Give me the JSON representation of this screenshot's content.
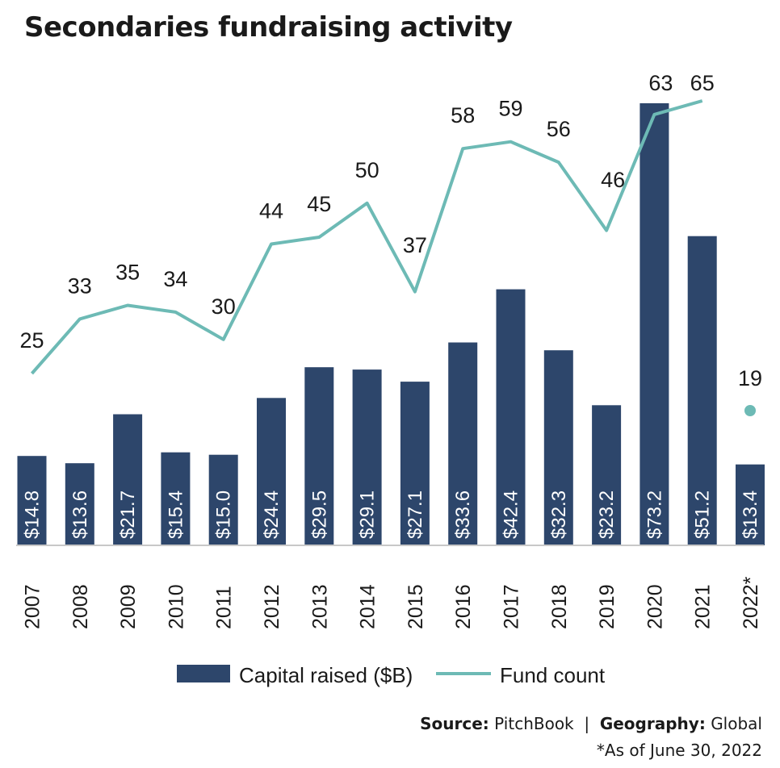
{
  "title": "Secondaries fundraising activity",
  "chart_data": {
    "type": "bar",
    "title": "Secondaries fundraising activity",
    "categories": [
      "2007",
      "2008",
      "2009",
      "2010",
      "2011",
      "2012",
      "2013",
      "2014",
      "2015",
      "2016",
      "2017",
      "2018",
      "2019",
      "2020",
      "2021",
      "2022*"
    ],
    "series": [
      {
        "name": "Capital raised ($B)",
        "type": "bar",
        "color": "#2d466b",
        "values": [
          14.8,
          13.6,
          21.7,
          15.4,
          15.0,
          24.4,
          29.5,
          29.1,
          27.1,
          33.6,
          42.4,
          32.3,
          23.2,
          73.2,
          51.2,
          13.4
        ],
        "labels": [
          "$14.8",
          "$13.6",
          "$21.7",
          "$15.4",
          "$15.0",
          "$24.4",
          "$29.5",
          "$29.1",
          "$27.1",
          "$33.6",
          "$42.4",
          "$32.3",
          "$23.2",
          "$73.2",
          "$51.2",
          "$13.4"
        ]
      },
      {
        "name": "Fund count",
        "type": "line",
        "color": "#6dbab5",
        "values": [
          25,
          33,
          35,
          34,
          30,
          44,
          45,
          50,
          37,
          58,
          59,
          56,
          46,
          63,
          65,
          19
        ],
        "labels": [
          "25",
          "33",
          "35",
          "34",
          "30",
          "44",
          "45",
          "50",
          "37",
          "58",
          "59",
          "56",
          "46",
          "63",
          "65",
          "19"
        ],
        "line_break_before_last": true
      }
    ],
    "legend": [
      "Capital raised ($B)",
      "Fund count"
    ],
    "legend_position": "bottom-center",
    "grid": false
  },
  "footer": {
    "source_label": "Source:",
    "source_value": "PitchBook",
    "separator": "|",
    "geo_label": "Geography:",
    "geo_value": "Global",
    "footnote": "*As of June 30, 2022"
  }
}
